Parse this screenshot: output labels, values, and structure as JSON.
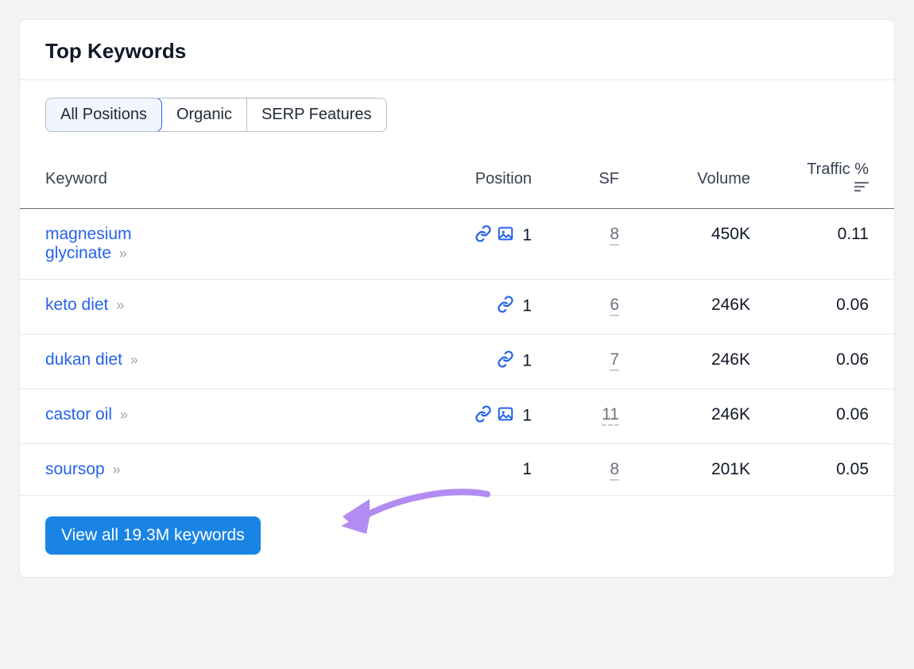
{
  "card": {
    "title": "Top Keywords"
  },
  "tabs": [
    {
      "label": "All Positions",
      "active": true
    },
    {
      "label": "Organic",
      "active": false
    },
    {
      "label": "SERP Features",
      "active": false
    }
  ],
  "columns": {
    "keyword": "Keyword",
    "position": "Position",
    "sf": "SF",
    "volume": "Volume",
    "traffic": "Traffic %"
  },
  "rows": [
    {
      "keyword": "magnesium glycinate",
      "multiline": true,
      "position": "1",
      "icons": [
        "link",
        "image"
      ],
      "sf": "8",
      "volume": "450K",
      "traffic": "0.11"
    },
    {
      "keyword": "keto diet",
      "multiline": false,
      "position": "1",
      "icons": [
        "link"
      ],
      "sf": "6",
      "volume": "246K",
      "traffic": "0.06"
    },
    {
      "keyword": "dukan diet",
      "multiline": false,
      "position": "1",
      "icons": [
        "link"
      ],
      "sf": "7",
      "volume": "246K",
      "traffic": "0.06"
    },
    {
      "keyword": "castor oil",
      "multiline": false,
      "position": "1",
      "icons": [
        "link",
        "image"
      ],
      "sf": "11",
      "volume": "246K",
      "traffic": "0.06"
    },
    {
      "keyword": "soursop",
      "multiline": false,
      "position": "1",
      "icons": [],
      "sf": "8",
      "volume": "201K",
      "traffic": "0.05"
    }
  ],
  "footer": {
    "view_all_label": "View all 19.3M keywords"
  },
  "colors": {
    "accent": "#2563eb",
    "button": "#1a84e5",
    "arrow": "#b28cf2"
  }
}
